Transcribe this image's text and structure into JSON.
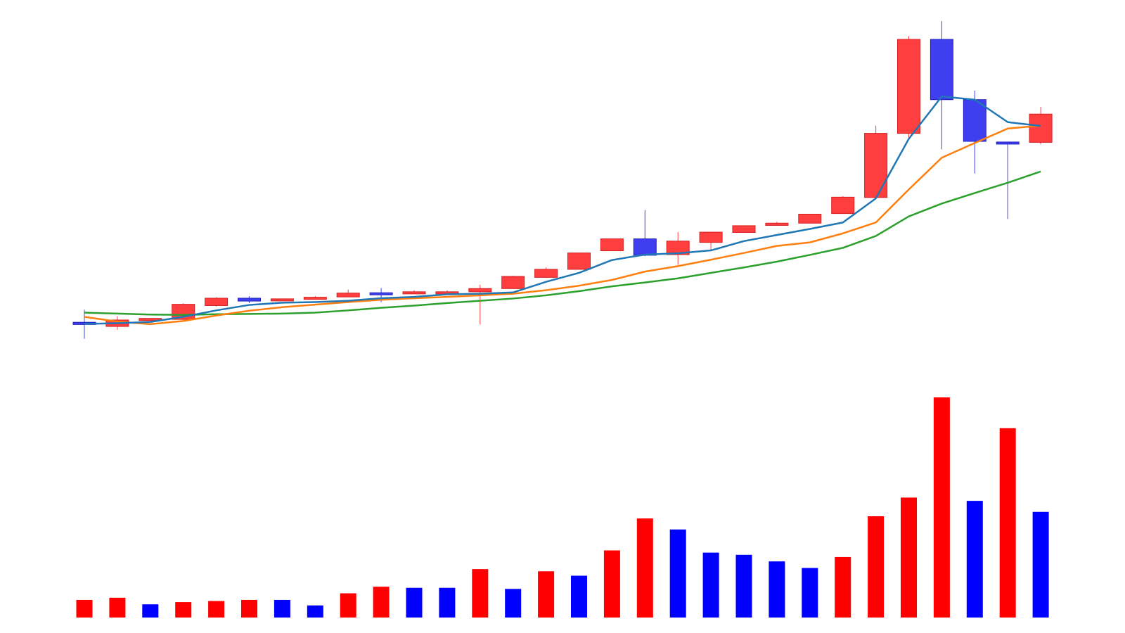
{
  "chart_data": [
    {
      "type": "candlestick",
      "title": "",
      "xlabel": "",
      "ylabel": "",
      "ylim": [
        0,
        100
      ],
      "grid": false,
      "axes_visible": false,
      "up_color": "#ff3f3f",
      "down_color": "#3f3ff0",
      "x": [
        1,
        2,
        3,
        4,
        5,
        6,
        7,
        8,
        9,
        10,
        11,
        12,
        13,
        14,
        15,
        16,
        17,
        18,
        19,
        20,
        21,
        22,
        23,
        24,
        25,
        26,
        27,
        28,
        29,
        30
      ],
      "candles": [
        {
          "open": 6.1,
          "high": 10.0,
          "low": 1.0,
          "close": 5.4
        },
        {
          "open": 4.8,
          "high": 8.0,
          "low": 3.8,
          "close": 6.8
        },
        {
          "open": 6.8,
          "high": 7.3,
          "low": 6.8,
          "close": 7.3
        },
        {
          "open": 7.0,
          "high": 12.0,
          "low": 6.8,
          "close": 11.7
        },
        {
          "open": 11.3,
          "high": 13.9,
          "low": 11.0,
          "close": 13.6
        },
        {
          "open": 13.6,
          "high": 14.2,
          "low": 12.1,
          "close": 12.7
        },
        {
          "open": 12.8,
          "high": 13.4,
          "low": 12.8,
          "close": 13.4
        },
        {
          "open": 13.3,
          "high": 14.3,
          "low": 13.3,
          "close": 13.9
        },
        {
          "open": 14.0,
          "high": 16.3,
          "low": 14.0,
          "close": 15.2
        },
        {
          "open": 15.3,
          "high": 16.8,
          "low": 12.4,
          "close": 15.0
        },
        {
          "open": 15.3,
          "high": 16.1,
          "low": 15.3,
          "close": 15.6
        },
        {
          "open": 15.6,
          "high": 16.1,
          "low": 15.6,
          "close": 15.6
        },
        {
          "open": 15.6,
          "high": 17.8,
          "low": 5.4,
          "close": 16.6
        },
        {
          "open": 16.6,
          "high": 20.6,
          "low": 16.6,
          "close": 20.4
        },
        {
          "open": 20.1,
          "high": 23.2,
          "low": 20.1,
          "close": 22.6
        },
        {
          "open": 22.6,
          "high": 27.7,
          "low": 22.6,
          "close": 27.7
        },
        {
          "open": 28.4,
          "high": 32.1,
          "low": 28.4,
          "close": 32.1
        },
        {
          "open": 32.1,
          "high": 41.1,
          "low": 26.7,
          "close": 27.0
        },
        {
          "open": 27.2,
          "high": 34.2,
          "low": 24.0,
          "close": 31.4
        },
        {
          "open": 31.0,
          "high": 34.2,
          "low": 28.7,
          "close": 34.2
        },
        {
          "open": 34.1,
          "high": 36.2,
          "low": 34.0,
          "close": 36.2
        },
        {
          "open": 36.3,
          "high": 37.4,
          "low": 36.3,
          "close": 37.0
        },
        {
          "open": 37.0,
          "high": 39.8,
          "low": 37.0,
          "close": 39.8
        },
        {
          "open": 40.0,
          "high": 45.4,
          "low": 40.0,
          "close": 45.1
        },
        {
          "open": 45.0,
          "high": 67.4,
          "low": 45.0,
          "close": 65.0
        },
        {
          "open": 65.0,
          "high": 95.3,
          "low": 63.7,
          "close": 94.3
        },
        {
          "open": 94.3,
          "high": 100.0,
          "low": 60.0,
          "close": 75.5
        },
        {
          "open": 75.5,
          "high": 78.3,
          "low": 52.5,
          "close": 62.5
        },
        {
          "open": 62.3,
          "high": 62.3,
          "low": 38.3,
          "close": 61.7
        },
        {
          "open": 62.2,
          "high": 73.2,
          "low": 61.5,
          "close": 71.0
        }
      ],
      "series": [
        {
          "color": "#1f77b4",
          "values": [
            5.6,
            5.8,
            6.2,
            7.8,
            9.8,
            11.5,
            12.2,
            12.4,
            12.8,
            13.6,
            14.0,
            14.8,
            15.0,
            15.4,
            18.7,
            21.5,
            25.5,
            27.2,
            27.6,
            28.5,
            31.4,
            33.3,
            35.2,
            37.2,
            44.7,
            63.3,
            76.5,
            75.5,
            68.5,
            67.3
          ]
        },
        {
          "color": "#ff7f0e",
          "values": [
            7.8,
            6.3,
            5.5,
            6.5,
            8.2,
            9.7,
            10.8,
            11.6,
            12.4,
            13.1,
            13.6,
            14.0,
            14.5,
            15.0,
            16.1,
            17.5,
            19.3,
            21.9,
            23.6,
            25.6,
            27.7,
            29.9,
            31.0,
            33.8,
            37.2,
            47.5,
            57.4,
            62.0,
            66.5,
            67.4
          ]
        },
        {
          "color": "#2ca02c",
          "values": [
            9.1,
            8.8,
            8.5,
            8.4,
            8.6,
            8.7,
            8.8,
            9.1,
            9.8,
            10.6,
            11.3,
            12.1,
            12.8,
            13.5,
            14.5,
            15.8,
            17.3,
            18.5,
            19.8,
            21.5,
            23.2,
            25.0,
            27.1,
            29.3,
            33.0,
            39.1,
            43.1,
            46.4,
            49.6,
            53.1
          ]
        }
      ]
    },
    {
      "type": "bar",
      "title": "",
      "xlabel": "",
      "ylabel": "",
      "ylim": [
        0,
        100
      ],
      "grid": false,
      "axes_visible": false,
      "x": [
        1,
        2,
        3,
        4,
        5,
        6,
        7,
        8,
        9,
        10,
        11,
        12,
        13,
        14,
        15,
        16,
        17,
        18,
        19,
        20,
        21,
        22,
        23,
        24,
        25,
        26,
        27,
        28,
        29,
        30
      ],
      "values": [
        8,
        9,
        6,
        7,
        7.5,
        8,
        8,
        5.5,
        11,
        14,
        13.5,
        13.5,
        22,
        13,
        21,
        19,
        30.5,
        45,
        40,
        29.5,
        28.5,
        25.5,
        22.5,
        27.5,
        46,
        54.5,
        100,
        53,
        86,
        48
      ],
      "colors": [
        "#ff0000",
        "#ff0000",
        "#0000ff",
        "#ff0000",
        "#ff0000",
        "#ff0000",
        "#0000ff",
        "#0000ff",
        "#ff0000",
        "#ff0000",
        "#0000ff",
        "#0000ff",
        "#ff0000",
        "#0000ff",
        "#ff0000",
        "#0000ff",
        "#ff0000",
        "#ff0000",
        "#0000ff",
        "#0000ff",
        "#0000ff",
        "#0000ff",
        "#0000ff",
        "#ff0000",
        "#ff0000",
        "#ff0000",
        "#ff0000",
        "#0000ff",
        "#ff0000",
        "#0000ff"
      ]
    }
  ]
}
